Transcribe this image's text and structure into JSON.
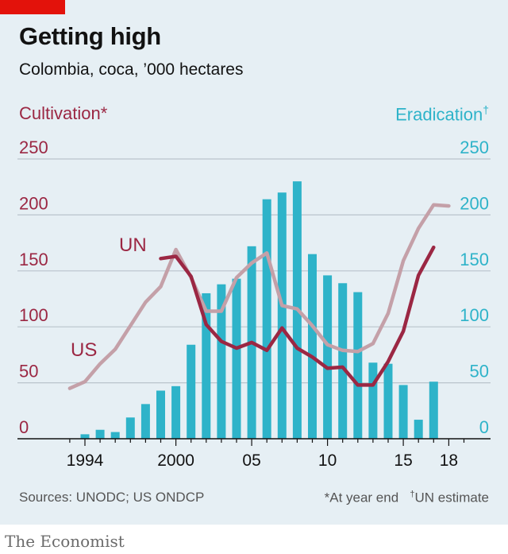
{
  "header": {
    "title": "Getting high",
    "subtitle": "Colombia, coca, ’000 hectares"
  },
  "axes": {
    "left_label": "Cultivation*",
    "right_label": "Eradication",
    "right_label_mark": "†"
  },
  "footer": {
    "source": "Sources: UNODC; US ONDCP",
    "footnote_star": "*At year end",
    "footnote_dagger_mark": "†",
    "footnote_dagger": "UN estimate",
    "brand": "The Economist"
  },
  "colors": {
    "background": "#e6eff4",
    "brand_red": "#e3120b",
    "bars": "#2eb3c9",
    "un_line": "#9b2743",
    "us_line": "#c4a0a8",
    "grid": "#b9c4cc"
  },
  "chart_data": {
    "type": "bar+line",
    "x_tick_labels": [
      "1994",
      "2000",
      "05",
      "10",
      "15",
      "18"
    ],
    "x_tick_values": [
      1994,
      2000,
      2005,
      2010,
      2015,
      2018
    ],
    "xlim": [
      1990,
      2020
    ],
    "ylim": [
      0,
      250
    ],
    "y_ticks": [
      0,
      50,
      100,
      150,
      200,
      250
    ],
    "grid": true,
    "eradication": {
      "axis": "right",
      "years": [
        1994,
        1995,
        1996,
        1997,
        1998,
        1999,
        2000,
        2001,
        2002,
        2003,
        2004,
        2005,
        2006,
        2007,
        2008,
        2009,
        2010,
        2011,
        2012,
        2013,
        2014,
        2015,
        2016,
        2017
      ],
      "values": [
        4,
        8,
        6,
        19,
        31,
        43,
        47,
        84,
        130,
        138,
        143,
        172,
        214,
        220,
        230,
        165,
        146,
        139,
        131,
        68,
        67,
        48,
        17,
        51
      ]
    },
    "series": [
      {
        "name": "UN",
        "axis": "left",
        "years": [
          1999,
          2000,
          2001,
          2002,
          2003,
          2004,
          2005,
          2006,
          2007,
          2008,
          2009,
          2010,
          2011,
          2012,
          2013,
          2014,
          2015,
          2016,
          2017
        ],
        "values": [
          161,
          163,
          145,
          102,
          87,
          81,
          86,
          79,
          99,
          81,
          73,
          63,
          64,
          48,
          48,
          69,
          96,
          146,
          171
        ]
      },
      {
        "name": "US",
        "axis": "left",
        "years": [
          1993,
          1994,
          1995,
          1996,
          1997,
          1998,
          1999,
          2000,
          2001,
          2002,
          2003,
          2004,
          2005,
          2006,
          2007,
          2008,
          2009,
          2010,
          2011,
          2012,
          2013,
          2014,
          2015,
          2016,
          2017,
          2018
        ],
        "values": [
          45,
          51,
          67,
          80,
          101,
          122,
          136,
          169,
          144,
          114,
          114,
          144,
          157,
          166,
          119,
          116,
          101,
          84,
          79,
          78,
          85,
          112,
          159,
          188,
          209,
          208
        ]
      }
    ]
  }
}
